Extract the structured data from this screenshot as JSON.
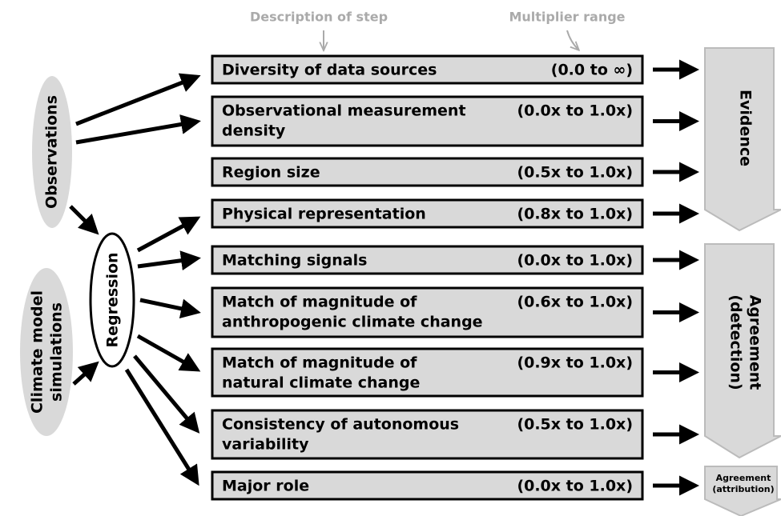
{
  "header": {
    "description": "Description of step",
    "multiplier": "Multiplier range"
  },
  "steps": [
    {
      "lines": [
        "Diversity of data sources"
      ],
      "range": "(0.0 to ∞)"
    },
    {
      "lines": [
        "Observational measurement",
        "density"
      ],
      "range": "(0.0x to 1.0x)"
    },
    {
      "lines": [
        "Region size"
      ],
      "range": "(0.5x to 1.0x)"
    },
    {
      "lines": [
        "Physical representation"
      ],
      "range": "(0.8x to 1.0x)"
    },
    {
      "lines": [
        "Matching signals"
      ],
      "range": "(0.0x to 1.0x)"
    },
    {
      "lines": [
        "Match of magnitude of",
        "anthropogenic climate change"
      ],
      "range": "(0.6x to 1.0x)"
    },
    {
      "lines": [
        "Match of magnitude of",
        "natural climate change"
      ],
      "range": "(0.9x to 1.0x)"
    },
    {
      "lines": [
        "Consistency of autonomous",
        "variability"
      ],
      "range": "(0.5x to 1.0x)"
    },
    {
      "lines": [
        "Major role"
      ],
      "range": "(0.0x to 1.0x)"
    }
  ],
  "inputs": {
    "observations": "Observations",
    "models": [
      "Climate model",
      "simulations"
    ],
    "regression": "Regression"
  },
  "outcomes": {
    "evidence": "Evidence",
    "detection": [
      "Agreement",
      "(detection)"
    ],
    "attribution": [
      "Agreement",
      "(attribution)"
    ]
  }
}
